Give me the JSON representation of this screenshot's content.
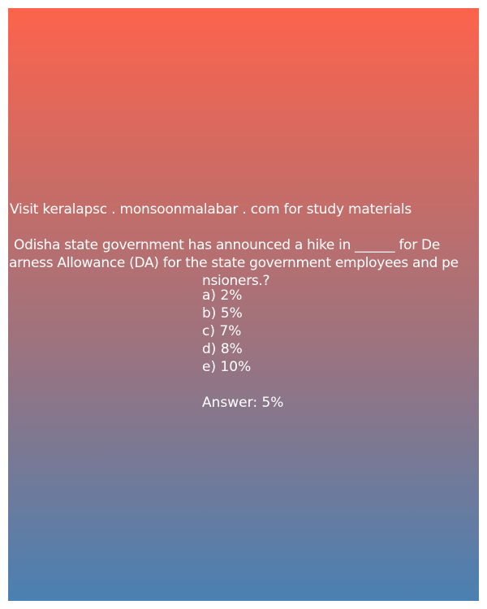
{
  "site_line": "Visit keralapsc . monsoonmalabar . com for study materials",
  "question": {
    "lines": [
      " Odisha state government has announced a hike in ______ for De",
      "arness Allowance (DA) for the state government employees and pe",
      "nsioners.?"
    ]
  },
  "options": [
    "a) 2%",
    "b) 5%",
    "c) 7%",
    "d) 8%",
    "e) 10%"
  ],
  "answer": "Answer: 5%"
}
